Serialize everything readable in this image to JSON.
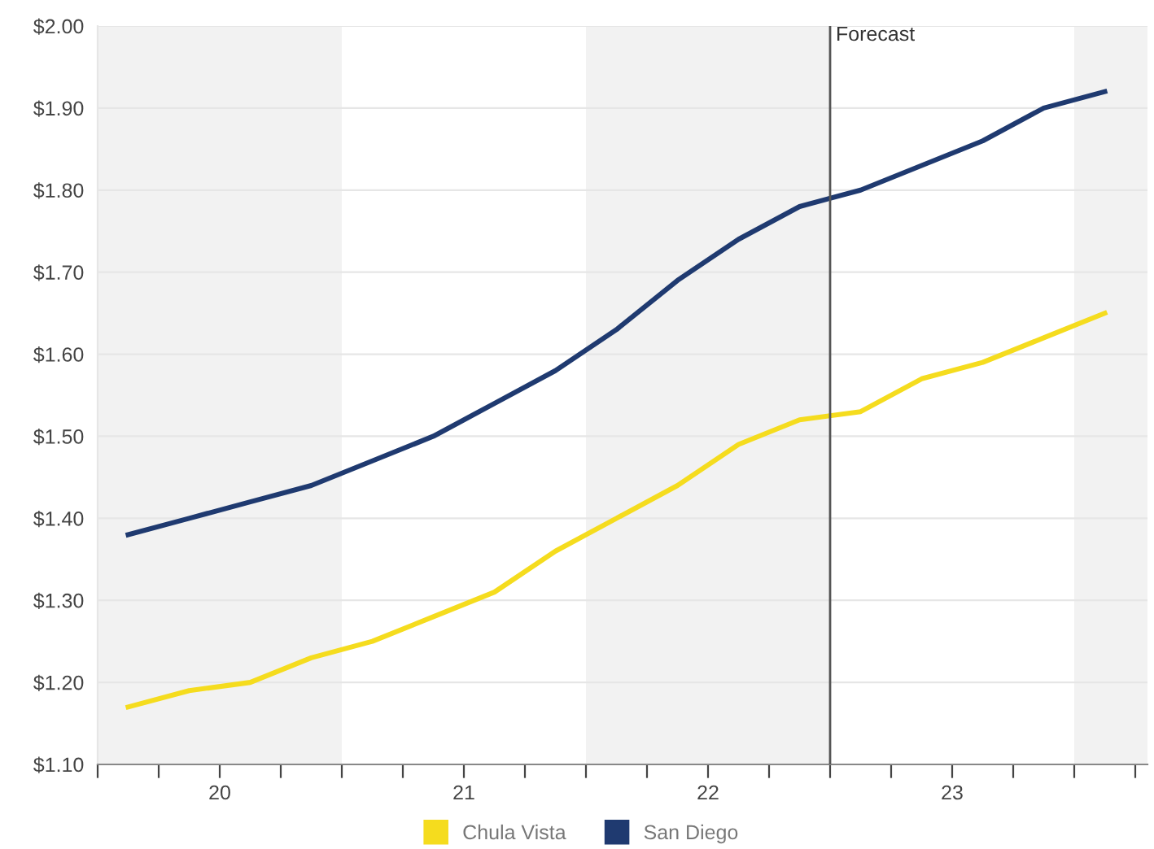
{
  "chart_data": {
    "type": "line",
    "x": [
      19.625,
      19.875,
      20.125,
      20.375,
      20.625,
      20.875,
      21.125,
      21.375,
      21.625,
      21.875,
      22.125,
      22.375,
      22.625,
      22.875,
      23.125,
      23.375,
      23.625
    ],
    "series": [
      {
        "name": "Chula Vista",
        "color": "#f5dc1e",
        "values": [
          1.17,
          1.19,
          1.2,
          1.23,
          1.25,
          1.28,
          1.31,
          1.36,
          1.4,
          1.44,
          1.49,
          1.52,
          1.53,
          1.57,
          1.59,
          1.62,
          1.65
        ]
      },
      {
        "name": "San Diego",
        "color": "#1f3a70",
        "values": [
          1.38,
          1.4,
          1.42,
          1.44,
          1.47,
          1.5,
          1.54,
          1.58,
          1.63,
          1.69,
          1.74,
          1.78,
          1.8,
          1.83,
          1.86,
          1.9,
          1.92
        ]
      }
    ],
    "xlim": [
      19.5,
      23.8
    ],
    "xticks": [
      {
        "value": 19.5,
        "label": null
      },
      {
        "value": 19.75,
        "label": null
      },
      20,
      {
        "value": 20.25,
        "label": null
      },
      {
        "value": 20.5,
        "label": null
      },
      {
        "value": 20.75,
        "label": null
      },
      21,
      {
        "value": 21.25,
        "label": null
      },
      {
        "value": 21.5,
        "label": null
      },
      {
        "value": 21.75,
        "label": null
      },
      22,
      {
        "value": 22.25,
        "label": null
      },
      {
        "value": 22.5,
        "label": null
      },
      {
        "value": 22.75,
        "label": null
      },
      23,
      {
        "value": 23.25,
        "label": null
      },
      {
        "value": 23.5,
        "label": null
      },
      {
        "value": 23.75,
        "label": null
      }
    ],
    "ylim": [
      1.1,
      2.0
    ],
    "yticks": [
      {
        "value": 1.1,
        "label": "$1.10"
      },
      {
        "value": 1.2,
        "label": "$1.20"
      },
      {
        "value": 1.3,
        "label": "$1.30"
      },
      {
        "value": 1.4,
        "label": "$1.40"
      },
      {
        "value": 1.5,
        "label": "$1.50"
      },
      {
        "value": 1.6,
        "label": "$1.60"
      },
      {
        "value": 1.7,
        "label": "$1.70"
      },
      {
        "value": 1.8,
        "label": "$1.80"
      },
      {
        "value": 1.9,
        "label": "$1.90"
      },
      {
        "value": 2.0,
        "label": "$2.00"
      }
    ],
    "grid": "y",
    "legend": "bottom",
    "marker": "none",
    "line_style": "solid",
    "ref_lines": [
      {
        "axis": "x",
        "value": 22.5,
        "label": "Forecast",
        "color": "#555555"
      }
    ],
    "bands": [
      {
        "axis": "x",
        "from": 19.5,
        "to": 20.5,
        "color": "#f2f2f2"
      },
      {
        "axis": "x",
        "from": 21.5,
        "to": 22.5,
        "color": "#f2f2f2"
      },
      {
        "axis": "x",
        "from": 23.5,
        "to": 23.8,
        "color": "#f2f2f2"
      }
    ]
  }
}
